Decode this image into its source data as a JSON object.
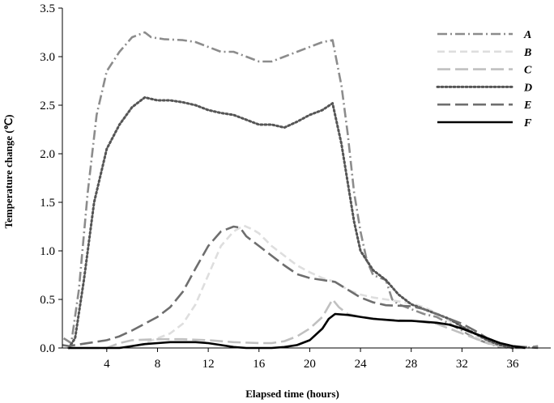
{
  "chart_data": {
    "type": "line",
    "xlabel": "Elapsed time (hours)",
    "ylabel": "Temperature change (℃)",
    "xlim": [
      0.5,
      39
    ],
    "ylim": [
      0,
      3.5
    ],
    "x_ticks": [
      4,
      8,
      12,
      16,
      20,
      24,
      28,
      32,
      36
    ],
    "x_tick_labels": [
      "4",
      "8",
      "12",
      "16",
      "20",
      "24",
      "28",
      "32",
      "36"
    ],
    "y_ticks": [
      0,
      0.5,
      1.0,
      1.5,
      2.0,
      2.5,
      3.0,
      3.5
    ],
    "y_tick_labels": [
      "0.0",
      "0.5",
      "1.0",
      "1.5",
      "2.0",
      "2.5",
      "3.0",
      "3.5"
    ],
    "grid": false,
    "legend": "top-right",
    "series": [
      {
        "name": "A",
        "color": "#8c8c8c",
        "dash": "dashdot",
        "points": [
          [
            0.6,
            0.1
          ],
          [
            1.2,
            0.05
          ],
          [
            1.8,
            0.6
          ],
          [
            2.5,
            1.6
          ],
          [
            3.2,
            2.4
          ],
          [
            4,
            2.85
          ],
          [
            5,
            3.05
          ],
          [
            6,
            3.2
          ],
          [
            7,
            3.25
          ],
          [
            7.5,
            3.2
          ],
          [
            8.5,
            3.18
          ],
          [
            10,
            3.17
          ],
          [
            11,
            3.15
          ],
          [
            12,
            3.1
          ],
          [
            13,
            3.05
          ],
          [
            14,
            3.05
          ],
          [
            15,
            3.0
          ],
          [
            16,
            2.95
          ],
          [
            17,
            2.95
          ],
          [
            18,
            3.0
          ],
          [
            19,
            3.05
          ],
          [
            20,
            3.1
          ],
          [
            21,
            3.15
          ],
          [
            21.8,
            3.17
          ],
          [
            22.5,
            2.7
          ],
          [
            23,
            2.2
          ],
          [
            23.5,
            1.6
          ],
          [
            24,
            1.2
          ],
          [
            24.5,
            0.9
          ],
          [
            25,
            0.75
          ],
          [
            26,
            0.7
          ],
          [
            26.5,
            0.5
          ],
          [
            27,
            0.45
          ],
          [
            28,
            0.4
          ],
          [
            29,
            0.35
          ],
          [
            30,
            0.32
          ],
          [
            31,
            0.25
          ],
          [
            32,
            0.18
          ],
          [
            33,
            0.1
          ],
          [
            34,
            0.05
          ],
          [
            35,
            0.01
          ],
          [
            36,
            0
          ],
          [
            37,
            0
          ],
          [
            38,
            0.02
          ]
        ]
      },
      {
        "name": "B",
        "color": "#dedede",
        "dash": "dash",
        "points": [
          [
            1,
            0
          ],
          [
            4,
            0
          ],
          [
            6,
            0.01
          ],
          [
            7,
            0.05
          ],
          [
            8,
            0.1
          ],
          [
            9,
            0.15
          ],
          [
            10,
            0.25
          ],
          [
            11,
            0.45
          ],
          [
            12,
            0.75
          ],
          [
            13,
            1.05
          ],
          [
            14,
            1.2
          ],
          [
            14.8,
            1.26
          ],
          [
            15.5,
            1.22
          ],
          [
            16,
            1.18
          ],
          [
            17,
            1.05
          ],
          [
            18,
            0.95
          ],
          [
            19,
            0.85
          ],
          [
            20,
            0.78
          ],
          [
            21,
            0.72
          ],
          [
            22,
            0.68
          ],
          [
            23,
            0.6
          ],
          [
            24,
            0.55
          ],
          [
            25,
            0.52
          ],
          [
            26,
            0.5
          ],
          [
            27,
            0.48
          ],
          [
            28,
            0.46
          ],
          [
            29,
            0.42
          ],
          [
            30,
            0.36
          ],
          [
            31,
            0.28
          ],
          [
            32,
            0.2
          ],
          [
            33,
            0.12
          ],
          [
            34,
            0.06
          ],
          [
            35,
            0.02
          ],
          [
            36,
            0
          ]
        ]
      },
      {
        "name": "C",
        "color": "#c0c0c0",
        "dash": "longdash",
        "points": [
          [
            1,
            0
          ],
          [
            4,
            0
          ],
          [
            5,
            0.05
          ],
          [
            6,
            0.08
          ],
          [
            8,
            0.09
          ],
          [
            10,
            0.09
          ],
          [
            12,
            0.08
          ],
          [
            14,
            0.06
          ],
          [
            16,
            0.05
          ],
          [
            17,
            0.05
          ],
          [
            18,
            0.07
          ],
          [
            19,
            0.12
          ],
          [
            20,
            0.2
          ],
          [
            21,
            0.32
          ],
          [
            21.8,
            0.5
          ],
          [
            22.3,
            0.42
          ],
          [
            23,
            0.35
          ],
          [
            24,
            0.32
          ],
          [
            26,
            0.29
          ],
          [
            28,
            0.28
          ],
          [
            30,
            0.25
          ],
          [
            31,
            0.2
          ],
          [
            32,
            0.15
          ],
          [
            33,
            0.1
          ],
          [
            34,
            0.05
          ],
          [
            35,
            0.02
          ],
          [
            36,
            0
          ]
        ]
      },
      {
        "name": "D",
        "color": "#555555",
        "dash": "dot",
        "points": [
          [
            1,
            0
          ],
          [
            1.5,
            0.1
          ],
          [
            2.2,
            0.7
          ],
          [
            3,
            1.5
          ],
          [
            4,
            2.05
          ],
          [
            5,
            2.3
          ],
          [
            6,
            2.48
          ],
          [
            7,
            2.58
          ],
          [
            8,
            2.55
          ],
          [
            9,
            2.55
          ],
          [
            10,
            2.53
          ],
          [
            11,
            2.5
          ],
          [
            12,
            2.45
          ],
          [
            13,
            2.42
          ],
          [
            14,
            2.4
          ],
          [
            15,
            2.35
          ],
          [
            16,
            2.3
          ],
          [
            17,
            2.3
          ],
          [
            18,
            2.27
          ],
          [
            19,
            2.33
          ],
          [
            20,
            2.4
          ],
          [
            21,
            2.45
          ],
          [
            21.8,
            2.52
          ],
          [
            22.5,
            2.1
          ],
          [
            23,
            1.7
          ],
          [
            23.5,
            1.3
          ],
          [
            24,
            1.0
          ],
          [
            25,
            0.8
          ],
          [
            26,
            0.7
          ],
          [
            27,
            0.55
          ],
          [
            28,
            0.45
          ],
          [
            29,
            0.4
          ],
          [
            30,
            0.35
          ],
          [
            31,
            0.3
          ],
          [
            32,
            0.22
          ],
          [
            33,
            0.15
          ],
          [
            34,
            0.08
          ],
          [
            35,
            0.03
          ],
          [
            36,
            0
          ]
        ]
      },
      {
        "name": "E",
        "color": "#6e6e6e",
        "dash": "longdash",
        "points": [
          [
            0.5,
            0.03
          ],
          [
            1,
            0.02
          ],
          [
            2,
            0.04
          ],
          [
            3,
            0.06
          ],
          [
            4,
            0.08
          ],
          [
            5,
            0.12
          ],
          [
            6,
            0.18
          ],
          [
            7,
            0.25
          ],
          [
            8,
            0.32
          ],
          [
            9,
            0.42
          ],
          [
            10,
            0.58
          ],
          [
            11,
            0.82
          ],
          [
            12,
            1.05
          ],
          [
            13,
            1.2
          ],
          [
            14,
            1.25
          ],
          [
            14.5,
            1.24
          ],
          [
            15,
            1.15
          ],
          [
            16,
            1.05
          ],
          [
            17,
            0.95
          ],
          [
            18,
            0.85
          ],
          [
            19,
            0.76
          ],
          [
            20,
            0.72
          ],
          [
            21,
            0.7
          ],
          [
            22,
            0.68
          ],
          [
            23,
            0.6
          ],
          [
            24,
            0.52
          ],
          [
            25,
            0.47
          ],
          [
            26,
            0.44
          ],
          [
            28,
            0.43
          ],
          [
            29,
            0.4
          ],
          [
            30,
            0.35
          ],
          [
            31,
            0.3
          ],
          [
            32,
            0.25
          ],
          [
            33,
            0.18
          ],
          [
            34,
            0.1
          ],
          [
            35,
            0.05
          ],
          [
            36,
            0.02
          ],
          [
            37,
            0.01
          ],
          [
            38,
            0
          ]
        ]
      },
      {
        "name": "F",
        "color": "#000000",
        "dash": "solid",
        "points": [
          [
            1,
            0
          ],
          [
            5,
            0
          ],
          [
            6,
            0.02
          ],
          [
            7,
            0.04
          ],
          [
            8,
            0.05
          ],
          [
            9,
            0.06
          ],
          [
            10,
            0.06
          ],
          [
            11,
            0.06
          ],
          [
            12,
            0.05
          ],
          [
            13,
            0.03
          ],
          [
            14,
            0.01
          ],
          [
            15,
            0
          ],
          [
            17,
            0
          ],
          [
            18,
            0.01
          ],
          [
            19,
            0.03
          ],
          [
            20,
            0.08
          ],
          [
            21,
            0.2
          ],
          [
            21.5,
            0.3
          ],
          [
            22,
            0.35
          ],
          [
            23,
            0.34
          ],
          [
            24,
            0.32
          ],
          [
            25,
            0.3
          ],
          [
            26,
            0.29
          ],
          [
            27,
            0.28
          ],
          [
            28,
            0.28
          ],
          [
            29,
            0.27
          ],
          [
            30,
            0.26
          ],
          [
            31,
            0.24
          ],
          [
            32,
            0.2
          ],
          [
            33,
            0.15
          ],
          [
            34,
            0.1
          ],
          [
            35,
            0.05
          ],
          [
            36,
            0.02
          ],
          [
            37,
            0
          ]
        ]
      }
    ]
  }
}
